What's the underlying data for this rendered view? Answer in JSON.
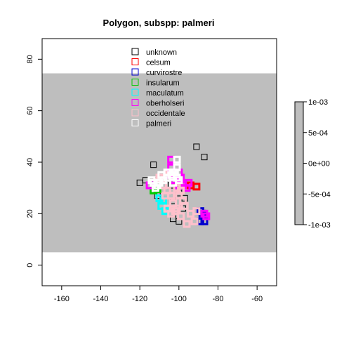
{
  "chart_data": {
    "type": "scatter",
    "title": "Polygon, subspp: palmeri",
    "xlabel": "",
    "ylabel": "",
    "xlim": [
      -170,
      -50
    ],
    "ylim": [
      -8,
      88
    ],
    "xticks": [
      -160,
      -140,
      -120,
      -100,
      -80,
      -60
    ],
    "yticks": [
      0,
      20,
      40,
      60,
      80
    ],
    "band": {
      "y0": 5,
      "y1": 74.5,
      "color": "#bebebe"
    },
    "grid": false,
    "legend_position": "top-center",
    "series": [
      {
        "name": "unknown",
        "color": "#000000",
        "marker": "open-square",
        "points": [
          [
            -91,
            46
          ],
          [
            -87,
            42
          ],
          [
            -113,
            39
          ],
          [
            -117,
            33
          ],
          [
            -120,
            32
          ],
          [
            -113,
            29
          ],
          [
            -103,
            18
          ],
          [
            -100,
            17
          ],
          [
            -111,
            27
          ],
          [
            -103,
            25
          ],
          [
            -97,
            26
          ],
          [
            -104,
            31
          ],
          [
            -111,
            33
          ],
          [
            -100,
            28
          ],
          [
            -98,
            22
          ],
          [
            -107,
            21
          ]
        ]
      },
      {
        "name": "celsum",
        "color": "#ff0000",
        "marker": "open-square",
        "points": [
          [
            -91,
            30.5
          ],
          [
            -94,
            31
          ]
        ]
      },
      {
        "name": "curvirostre",
        "color": "#0000cd",
        "marker": "open-square",
        "points": [
          [
            -89,
            21
          ],
          [
            -89,
            17
          ],
          [
            -87,
            17
          ],
          [
            -88,
            20
          ]
        ]
      },
      {
        "name": "insularum",
        "color": "#00cd00",
        "marker": "open-square",
        "points": [
          [
            -113,
            29
          ],
          [
            -111,
            29.5
          ]
        ]
      },
      {
        "name": "maculatum",
        "color": "#00ffff",
        "marker": "open-square",
        "points": [
          [
            -108,
            25
          ],
          [
            -109,
            23
          ],
          [
            -107,
            21
          ],
          [
            -110,
            26
          ]
        ]
      },
      {
        "name": "oberholseri",
        "color": "#ff00ff",
        "marker": "open-square",
        "points": [
          [
            -104,
            41
          ],
          [
            -104,
            38
          ],
          [
            -104,
            35
          ],
          [
            -100,
            36
          ],
          [
            -99,
            34
          ],
          [
            -98,
            31
          ],
          [
            -95,
            32
          ],
          [
            -96,
            30
          ],
          [
            -100,
            31
          ],
          [
            -103,
            33
          ],
          [
            -115,
            31
          ],
          [
            -87,
            20
          ],
          [
            -86,
            19
          ],
          [
            -102,
            34
          ]
        ]
      },
      {
        "name": "occidentale",
        "color": "#ffc0cb",
        "marker": "open-square",
        "points": [
          [
            -108,
            31
          ],
          [
            -106,
            29
          ],
          [
            -104,
            27
          ],
          [
            -103,
            24
          ],
          [
            -102,
            21
          ],
          [
            -99,
            19
          ],
          [
            -96,
            16
          ],
          [
            -92,
            17
          ],
          [
            -94,
            20
          ],
          [
            -91,
            21
          ],
          [
            -97,
            23
          ],
          [
            -100,
            27
          ],
          [
            -101,
            30
          ],
          [
            -98,
            25
          ],
          [
            -106,
            22
          ],
          [
            -104,
            20
          ],
          [
            -110,
            34
          ],
          [
            -105,
            36
          ],
          [
            -107,
            27
          ],
          [
            -101,
            22
          ],
          [
            -113,
            32
          ],
          [
            -99,
            29
          ]
        ]
      },
      {
        "name": "palmeri",
        "color": "#ffffff",
        "marker": "open-square",
        "points": [
          [
            -101,
            41
          ],
          [
            -101,
            38
          ],
          [
            -102,
            36
          ],
          [
            -104,
            35
          ],
          [
            -106,
            34
          ],
          [
            -108,
            33
          ],
          [
            -110,
            32
          ],
          [
            -111,
            31
          ],
          [
            -112,
            30
          ],
          [
            -113,
            32
          ],
          [
            -114,
            33
          ],
          [
            -109,
            35
          ],
          [
            -106,
            36
          ],
          [
            -103,
            36
          ],
          [
            -101,
            34
          ],
          [
            -100,
            33
          ],
          [
            -103,
            32
          ]
        ]
      }
    ],
    "colorbar": {
      "ticks": [
        "1e-03",
        "5e-04",
        "0e+00",
        "-5e-04",
        "-1e-03"
      ],
      "values": [
        0.001,
        0.0005,
        0,
        -0.0005,
        -0.001
      ],
      "color": "#bebebe"
    }
  }
}
